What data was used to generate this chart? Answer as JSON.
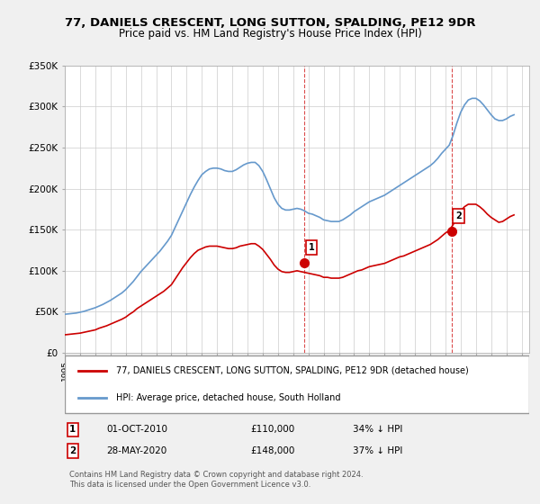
{
  "title": "77, DANIELS CRESCENT, LONG SUTTON, SPALDING, PE12 9DR",
  "subtitle": "Price paid vs. HM Land Registry's House Price Index (HPI)",
  "legend_line1": "77, DANIELS CRESCENT, LONG SUTTON, SPALDING, PE12 9DR (detached house)",
  "legend_line2": "HPI: Average price, detached house, South Holland",
  "annotation_footer": "Contains HM Land Registry data © Crown copyright and database right 2024.\nThis data is licensed under the Open Government Licence v3.0.",
  "point1_label": "1",
  "point1_date": "01-OCT-2010",
  "point1_price": "£110,000",
  "point1_pct": "34% ↓ HPI",
  "point2_label": "2",
  "point2_date": "28-MAY-2020",
  "point2_price": "£148,000",
  "point2_pct": "37% ↓ HPI",
  "red_color": "#cc0000",
  "blue_color": "#6699cc",
  "background_color": "#f0f0f0",
  "plot_bg_color": "#ffffff",
  "grid_color": "#cccccc",
  "ylim": [
    0,
    350000
  ],
  "xlim_start": 1995.0,
  "xlim_end": 2025.5,
  "hpi_x": [
    1995.0,
    1995.25,
    1995.5,
    1995.75,
    1996.0,
    1996.25,
    1996.5,
    1996.75,
    1997.0,
    1997.25,
    1997.5,
    1997.75,
    1998.0,
    1998.25,
    1998.5,
    1998.75,
    1999.0,
    1999.25,
    1999.5,
    1999.75,
    2000.0,
    2000.25,
    2000.5,
    2000.75,
    2001.0,
    2001.25,
    2001.5,
    2001.75,
    2002.0,
    2002.25,
    2002.5,
    2002.75,
    2003.0,
    2003.25,
    2003.5,
    2003.75,
    2004.0,
    2004.25,
    2004.5,
    2004.75,
    2005.0,
    2005.25,
    2005.5,
    2005.75,
    2006.0,
    2006.25,
    2006.5,
    2006.75,
    2007.0,
    2007.25,
    2007.5,
    2007.75,
    2008.0,
    2008.25,
    2008.5,
    2008.75,
    2009.0,
    2009.25,
    2009.5,
    2009.75,
    2010.0,
    2010.25,
    2010.5,
    2010.75,
    2011.0,
    2011.25,
    2011.5,
    2011.75,
    2012.0,
    2012.25,
    2012.5,
    2012.75,
    2013.0,
    2013.25,
    2013.5,
    2013.75,
    2014.0,
    2014.25,
    2014.5,
    2014.75,
    2015.0,
    2015.25,
    2015.5,
    2015.75,
    2016.0,
    2016.25,
    2016.5,
    2016.75,
    2017.0,
    2017.25,
    2017.5,
    2017.75,
    2018.0,
    2018.25,
    2018.5,
    2018.75,
    2019.0,
    2019.25,
    2019.5,
    2019.75,
    2020.0,
    2020.25,
    2020.5,
    2020.75,
    2021.0,
    2021.25,
    2021.5,
    2021.75,
    2022.0,
    2022.25,
    2022.5,
    2022.75,
    2023.0,
    2023.25,
    2023.5,
    2023.75,
    2024.0,
    2024.25,
    2024.5
  ],
  "hpi_y": [
    47000,
    47500,
    48000,
    48500,
    49500,
    50500,
    52000,
    53500,
    55000,
    57000,
    59000,
    61500,
    64000,
    67000,
    70000,
    73000,
    77000,
    82000,
    87000,
    93000,
    99000,
    104000,
    109000,
    114000,
    119000,
    124000,
    130000,
    136000,
    143000,
    153000,
    163000,
    173000,
    183000,
    193000,
    202000,
    210000,
    217000,
    221000,
    224000,
    225000,
    225000,
    224000,
    222000,
    221000,
    221000,
    223000,
    226000,
    229000,
    231000,
    232000,
    232000,
    228000,
    221000,
    211000,
    200000,
    189000,
    181000,
    176000,
    174000,
    174000,
    175000,
    176000,
    175000,
    173000,
    170000,
    169000,
    167000,
    165000,
    162000,
    161000,
    160000,
    160000,
    160000,
    162000,
    165000,
    168000,
    172000,
    175000,
    178000,
    181000,
    184000,
    186000,
    188000,
    190000,
    192000,
    195000,
    198000,
    201000,
    204000,
    207000,
    210000,
    213000,
    216000,
    219000,
    222000,
    225000,
    228000,
    232000,
    237000,
    243000,
    248000,
    253000,
    265000,
    280000,
    293000,
    302000,
    308000,
    310000,
    310000,
    307000,
    302000,
    296000,
    290000,
    285000,
    283000,
    283000,
    285000,
    288000,
    290000
  ],
  "red_x": [
    1995.0,
    1995.25,
    1995.5,
    1995.75,
    1996.0,
    1996.25,
    1996.5,
    1996.75,
    1997.0,
    1997.25,
    1997.5,
    1997.75,
    1998.0,
    1998.25,
    1998.5,
    1998.75,
    1999.0,
    1999.25,
    1999.5,
    1999.75,
    2000.0,
    2000.25,
    2000.5,
    2000.75,
    2001.0,
    2001.25,
    2001.5,
    2001.75,
    2002.0,
    2002.25,
    2002.5,
    2002.75,
    2003.0,
    2003.25,
    2003.5,
    2003.75,
    2004.0,
    2004.25,
    2004.5,
    2004.75,
    2005.0,
    2005.25,
    2005.5,
    2005.75,
    2006.0,
    2006.25,
    2006.5,
    2006.75,
    2007.0,
    2007.25,
    2007.5,
    2007.75,
    2008.0,
    2008.25,
    2008.5,
    2008.75,
    2009.0,
    2009.25,
    2009.5,
    2009.75,
    2010.0,
    2010.25,
    2010.5,
    2010.75,
    2011.0,
    2011.25,
    2011.5,
    2011.75,
    2012.0,
    2012.25,
    2012.5,
    2012.75,
    2013.0,
    2013.25,
    2013.5,
    2013.75,
    2014.0,
    2014.25,
    2014.5,
    2014.75,
    2015.0,
    2015.25,
    2015.5,
    2015.75,
    2016.0,
    2016.25,
    2016.5,
    2016.75,
    2017.0,
    2017.25,
    2017.5,
    2017.75,
    2018.0,
    2018.25,
    2018.5,
    2018.75,
    2019.0,
    2019.25,
    2019.5,
    2019.75,
    2020.0,
    2020.25,
    2020.5,
    2020.75,
    2021.0,
    2021.25,
    2021.5,
    2021.75,
    2022.0,
    2022.25,
    2022.5,
    2022.75,
    2023.0,
    2023.25,
    2023.5,
    2023.75,
    2024.0,
    2024.25,
    2024.5
  ],
  "red_y": [
    22000,
    22500,
    23000,
    23500,
    24000,
    25000,
    26000,
    27000,
    28000,
    30000,
    31500,
    33000,
    35000,
    37000,
    39000,
    41000,
    43500,
    47000,
    50000,
    54000,
    57000,
    60000,
    63000,
    66000,
    69000,
    72000,
    75000,
    79000,
    83000,
    90000,
    97000,
    104000,
    110000,
    116000,
    121000,
    125000,
    127000,
    129000,
    130000,
    130000,
    130000,
    129000,
    128000,
    127000,
    127000,
    128000,
    130000,
    131000,
    132000,
    133000,
    133000,
    130000,
    126000,
    120000,
    114000,
    107000,
    102000,
    99000,
    98000,
    98000,
    99000,
    100000,
    99000,
    98000,
    97000,
    96000,
    95000,
    94000,
    92000,
    92000,
    91000,
    91000,
    91000,
    92000,
    94000,
    96000,
    98000,
    100000,
    101000,
    103000,
    105000,
    106000,
    107000,
    108000,
    109000,
    111000,
    113000,
    115000,
    117000,
    118000,
    120000,
    122000,
    124000,
    126000,
    128000,
    130000,
    132000,
    135000,
    138000,
    142000,
    146000,
    149000,
    156000,
    165000,
    173000,
    178000,
    181000,
    181000,
    181000,
    178000,
    174000,
    169000,
    165000,
    162000,
    159000,
    160000,
    163000,
    166000,
    168000
  ],
  "point1_x": 2010.75,
  "point1_y": 110000,
  "point2_x": 2020.4,
  "point2_y": 148000,
  "vline1_x": 2010.75,
  "vline2_x": 2020.4
}
